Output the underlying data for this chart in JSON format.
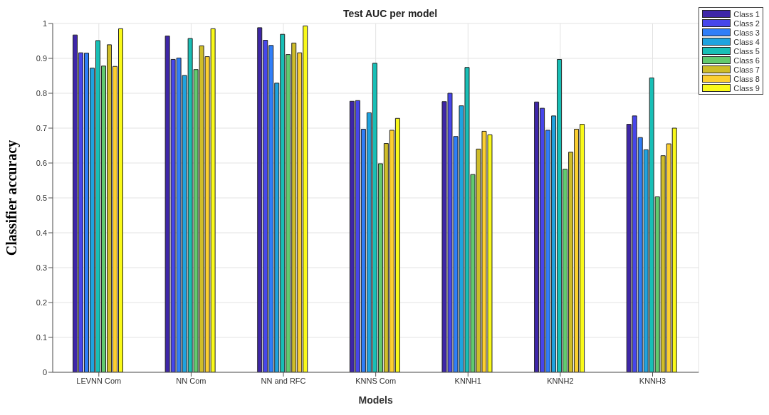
{
  "chart_data": {
    "type": "bar",
    "title": "Test AUC per model",
    "xlabel": "Models",
    "ylabel": "Classifier accuracy",
    "categories": [
      "LEVNN Com",
      "NN Com",
      "NN and RFC",
      "KNNS Com",
      "KNNH1",
      "KNNH2",
      "KNNH3"
    ],
    "series": [
      {
        "name": "Class 1",
        "color": "#3e26a8",
        "values": [
          0.967,
          0.964,
          0.988,
          0.777,
          0.776,
          0.775,
          0.711
        ]
      },
      {
        "name": "Class 2",
        "color": "#4746eb",
        "values": [
          0.916,
          0.897,
          0.952,
          0.779,
          0.8,
          0.757,
          0.735
        ]
      },
      {
        "name": "Class 3",
        "color": "#2f7ef8",
        "values": [
          0.915,
          0.901,
          0.937,
          0.697,
          0.676,
          0.694,
          0.673
        ]
      },
      {
        "name": "Class 4",
        "color": "#1fa3df",
        "values": [
          0.872,
          0.851,
          0.829,
          0.744,
          0.764,
          0.735,
          0.638
        ]
      },
      {
        "name": "Class 5",
        "color": "#18bfb6",
        "values": [
          0.951,
          0.957,
          0.969,
          0.886,
          0.874,
          0.897,
          0.844
        ]
      },
      {
        "name": "Class 6",
        "color": "#62ca6f",
        "values": [
          0.878,
          0.868,
          0.911,
          0.598,
          0.567,
          0.582,
          0.503
        ]
      },
      {
        "name": "Class 7",
        "color": "#cfbd29",
        "values": [
          0.939,
          0.936,
          0.944,
          0.656,
          0.64,
          0.631,
          0.621
        ]
      },
      {
        "name": "Class 8",
        "color": "#fccf30",
        "values": [
          0.877,
          0.905,
          0.916,
          0.694,
          0.691,
          0.697,
          0.655
        ]
      },
      {
        "name": "Class 9",
        "color": "#f9f91a",
        "values": [
          0.985,
          0.985,
          0.993,
          0.728,
          0.681,
          0.711,
          0.7
        ]
      }
    ],
    "ylim": [
      0,
      1
    ],
    "yticks": [
      0,
      0.1,
      0.2,
      0.3,
      0.4,
      0.5,
      0.6,
      0.7,
      0.8,
      0.9,
      1
    ],
    "grid": true,
    "legend": "top right"
  }
}
